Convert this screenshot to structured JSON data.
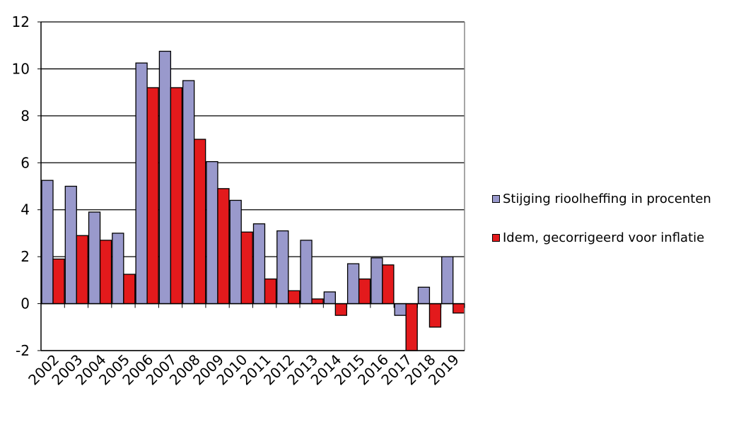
{
  "chart_data": {
    "type": "bar",
    "categories": [
      "2002",
      "2003",
      "2004",
      "2005",
      "2006",
      "2007",
      "2008",
      "2009",
      "2010",
      "2011",
      "2012",
      "2013",
      "2014",
      "2015",
      "2016",
      "2017",
      "2018",
      "2019"
    ],
    "series": [
      {
        "name": "Stijging rioolheffing in procenten",
        "color": "#9999cc",
        "values": [
          5.25,
          5.0,
          3.9,
          3.0,
          10.25,
          10.75,
          9.5,
          6.05,
          4.4,
          3.4,
          3.1,
          2.7,
          0.5,
          1.7,
          1.95,
          -0.5,
          0.7,
          2.0
        ]
      },
      {
        "name": "Idem, gecorrigeerd voor inflatie",
        "color": "#e31a1c",
        "values": [
          1.9,
          2.9,
          2.7,
          1.25,
          9.2,
          9.2,
          7.0,
          4.9,
          3.05,
          1.05,
          0.55,
          0.2,
          -0.5,
          1.05,
          1.65,
          -2.0,
          -1.0,
          -0.4
        ]
      }
    ],
    "ylim": [
      -2,
      12
    ],
    "yticks": [
      "-2",
      "0",
      "2",
      "4",
      "6",
      "8",
      "10",
      "12"
    ],
    "grid": "horizontal",
    "legend_position": "right"
  }
}
